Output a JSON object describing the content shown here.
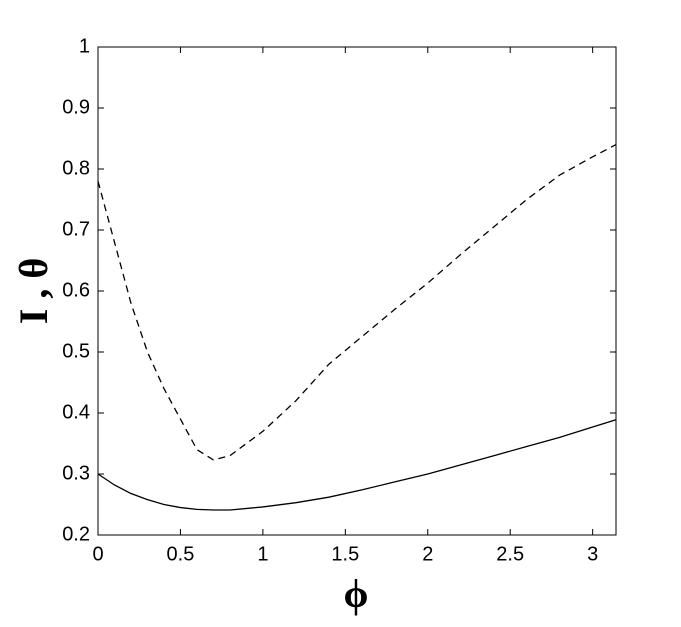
{
  "chart_data": {
    "type": "line",
    "x": [
      0,
      0.1,
      0.2,
      0.3,
      0.4,
      0.5,
      0.6,
      0.7,
      0.8,
      1.0,
      1.2,
      1.4,
      1.6,
      1.8,
      2.0,
      2.2,
      2.4,
      2.6,
      2.8,
      3.0,
      3.14159
    ],
    "series": [
      {
        "color": "#000000",
        "dash": "solid",
        "values": [
          0.3,
          0.282,
          0.268,
          0.258,
          0.25,
          0.245,
          0.242,
          0.241,
          0.241,
          0.246,
          0.253,
          0.262,
          0.274,
          0.287,
          0.3,
          0.315,
          0.33,
          0.345,
          0.36,
          0.377,
          0.389
        ]
      },
      {
        "color": "#000000",
        "dash": "dashed",
        "values": [
          0.78,
          0.68,
          0.58,
          0.5,
          0.44,
          0.39,
          0.34,
          0.323,
          0.33,
          0.37,
          0.42,
          0.48,
          0.525,
          0.57,
          0.613,
          0.66,
          0.705,
          0.75,
          0.79,
          0.82,
          0.84
        ]
      }
    ],
    "x_label": "ϕ",
    "y_label": "I , θ",
    "xlim": [
      0,
      3.14159
    ],
    "ylim": [
      0.2,
      1
    ],
    "xticks": [
      0,
      0.5,
      1,
      1.5,
      2,
      2.5,
      3
    ],
    "yticks": [
      0.2,
      0.3,
      0.4,
      0.5,
      0.6,
      0.7,
      0.8,
      0.9,
      1
    ]
  }
}
